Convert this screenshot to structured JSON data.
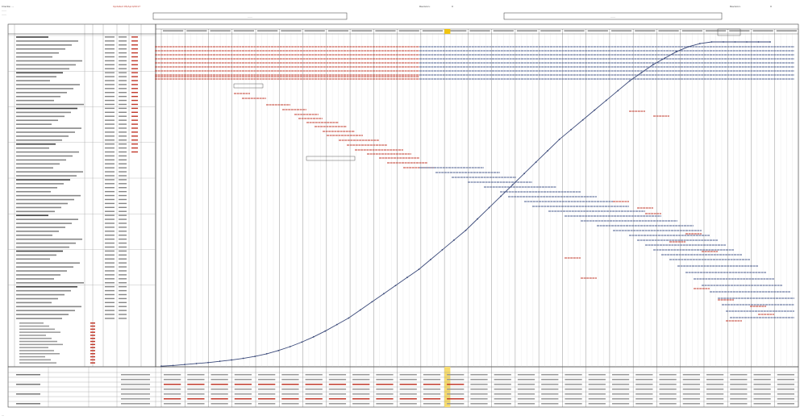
{
  "header": {
    "left_lines": [
      "Cliente: ...",
      "......",
      "......"
    ],
    "left_date_label": "Updated 05/April/2017",
    "banner_left": "......",
    "banner_right": "......",
    "rev_left": "Revision:",
    "rev_left_value": "0",
    "rev_right": "Revision:",
    "rev_right_value": "0"
  },
  "table": {
    "columns": [
      "",
      "",
      "",
      "",
      "",
      "",
      ""
    ],
    "footer_note": "..."
  },
  "chart_data": {
    "type": "line",
    "title": "",
    "x_label": "",
    "y_label": "",
    "legend": "none",
    "grid": true,
    "series": [
      {
        "values": [
          0.2,
          0.4,
          0.7,
          1,
          1.3,
          1.7,
          2.1,
          2.6,
          3.2,
          4,
          5,
          6.2,
          7.6,
          9.2,
          11,
          13,
          15,
          17.5,
          20,
          22.5,
          25,
          27.5,
          30,
          33,
          36,
          39,
          42,
          45.5,
          49,
          52.5,
          56,
          59.5,
          63,
          66.5,
          70,
          73,
          76,
          79,
          82,
          85,
          88,
          90.5,
          93,
          95,
          97,
          98.5,
          99.5,
          100,
          100,
          100,
          100,
          100,
          100
        ]
      }
    ]
  },
  "gantt": {
    "task_count": 72
  }
}
